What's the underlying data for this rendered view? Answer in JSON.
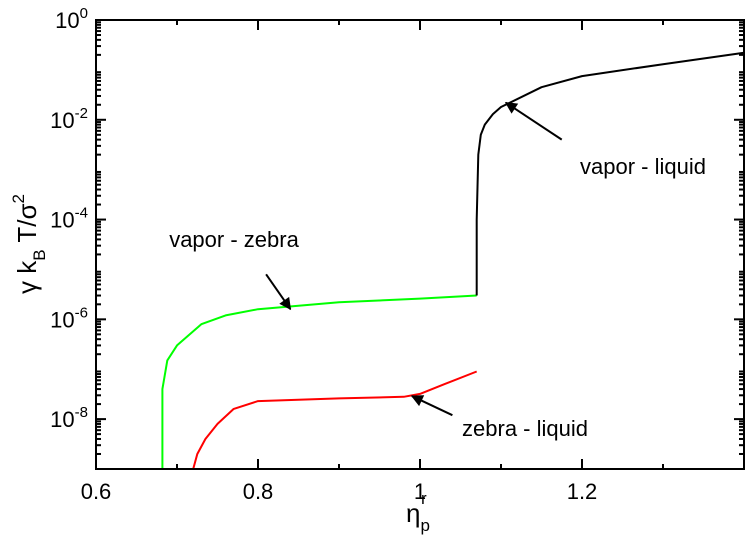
{
  "chart_data": {
    "type": "line",
    "x_axis": {
      "label": "η",
      "label_sub": "p",
      "label_sup": "r",
      "range": [
        0.6,
        1.4
      ],
      "ticks": [
        {
          "value": 0.6,
          "label": "0.6"
        },
        {
          "value": 0.8,
          "label": "0.8"
        },
        {
          "value": 1.0,
          "label": "1"
        },
        {
          "value": 1.2,
          "label": "1.2"
        }
      ]
    },
    "y_axis": {
      "label_parts": [
        "γ k",
        "B",
        " T/σ",
        "2"
      ],
      "scale": "log",
      "range": [
        1e-09,
        1
      ],
      "ticks": [
        {
          "value": 1,
          "base": "10",
          "exp": "0"
        },
        {
          "value": 0.01,
          "base": "10",
          "exp": "-2"
        },
        {
          "value": 0.0001,
          "base": "10",
          "exp": "-4"
        },
        {
          "value": 1e-06,
          "base": "10",
          "exp": "-6"
        },
        {
          "value": 1e-08,
          "base": "10",
          "exp": "-8"
        }
      ]
    },
    "grid": false,
    "series": [
      {
        "color": "#00ff00",
        "points": [
          [
            0.682,
            1e-09
          ],
          [
            0.682,
            4e-08
          ],
          [
            0.688,
            1.5e-07
          ],
          [
            0.7,
            3e-07
          ],
          [
            0.73,
            8e-07
          ],
          [
            0.76,
            1.2e-06
          ],
          [
            0.8,
            1.6e-06
          ],
          [
            0.9,
            2.2e-06
          ],
          [
            1.0,
            2.6e-06
          ],
          [
            1.07,
            3e-06
          ]
        ]
      },
      {
        "color": "#000000",
        "points": [
          [
            1.07,
            3e-06
          ],
          [
            1.07,
            0.0001
          ],
          [
            1.072,
            0.002
          ],
          [
            1.075,
            0.005
          ],
          [
            1.08,
            0.008
          ],
          [
            1.09,
            0.013
          ],
          [
            1.1,
            0.018
          ],
          [
            1.15,
            0.045
          ],
          [
            1.2,
            0.075
          ],
          [
            1.3,
            0.13
          ],
          [
            1.4,
            0.22
          ]
        ]
      },
      {
        "color": "#ff0000",
        "points": [
          [
            0.72,
            1e-09
          ],
          [
            0.725,
            2e-09
          ],
          [
            0.735,
            4e-09
          ],
          [
            0.75,
            8e-09
          ],
          [
            0.77,
            1.6e-08
          ],
          [
            0.8,
            2.3e-08
          ],
          [
            0.9,
            2.6e-08
          ],
          [
            0.98,
            2.8e-08
          ],
          [
            1.0,
            3.2e-08
          ],
          [
            1.03,
            5e-08
          ],
          [
            1.07,
            9e-08
          ]
        ]
      }
    ],
    "annotations": [
      {
        "text": "vapor - liquid",
        "arrow_from": [
          1.175,
          0.004
        ],
        "arrow_to": [
          1.106,
          0.022
        ]
      },
      {
        "text": "vapor - zebra",
        "arrow_from": [
          0.81,
          8e-06
        ],
        "arrow_to": [
          0.84,
          1.6e-06
        ]
      },
      {
        "text": "zebra - liquid",
        "arrow_from": [
          1.04,
          1.2e-08
        ],
        "arrow_to": [
          0.99,
          2.9e-08
        ]
      }
    ]
  }
}
